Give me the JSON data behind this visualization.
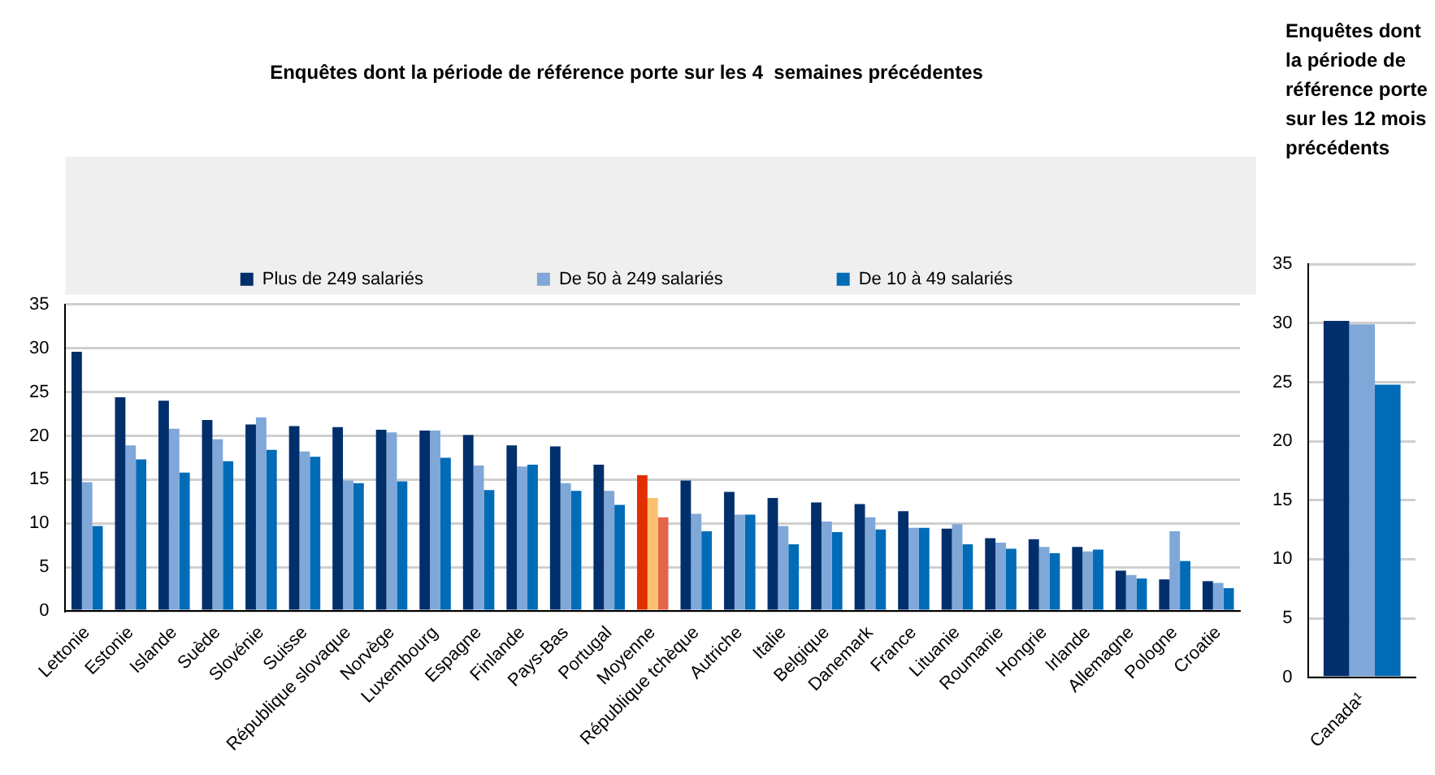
{
  "chart_data": [
    {
      "type": "bar",
      "title": "Enquêtes dont la période de référence porte sur les 4  semaines précédentes",
      "categories": [
        "Lettonie",
        "Estonie",
        "Islande",
        "Suède",
        "Slovénie",
        "Suisse",
        "République slovaque",
        "Norvège",
        "Luxembourg",
        "Espagne",
        "Finlande",
        "Pays-Bas",
        "Portugal",
        "Moyenne",
        "République tchèque",
        "Autriche",
        "Italie",
        "Belgique",
        "Danemark",
        "France",
        "Lituanie",
        "Roumanie",
        "Hongrie",
        "Irlande",
        "Allemagne",
        "Pologne",
        "Croatie"
      ],
      "series": [
        {
          "name": "Plus de 249 salariés",
          "color": "#002f6c",
          "colors": [
            "#002f6c",
            "#002f6c",
            "#002f6c",
            "#002f6c",
            "#002f6c",
            "#002f6c",
            "#002f6c",
            "#002f6c",
            "#002f6c",
            "#002f6c",
            "#002f6c",
            "#002f6c",
            "#002f6c",
            "#e03000",
            "#002f6c",
            "#002f6c",
            "#002f6c",
            "#002f6c",
            "#002f6c",
            "#002f6c",
            "#002f6c",
            "#002f6c",
            "#002f6c",
            "#002f6c",
            "#002f6c",
            "#002f6c",
            "#002f6c"
          ],
          "values": [
            29.6,
            24.4,
            24.0,
            21.8,
            21.3,
            21.1,
            21.0,
            20.7,
            20.6,
            20.1,
            18.9,
            18.8,
            16.7,
            15.5,
            14.9,
            13.6,
            12.9,
            12.4,
            12.2,
            11.4,
            9.4,
            8.3,
            8.2,
            7.3,
            4.6,
            3.6,
            3.4
          ]
        },
        {
          "name": "De 50 à 249 salariés",
          "color": "#7fa7d8",
          "colors": [
            "#7fa7d8",
            "#7fa7d8",
            "#7fa7d8",
            "#7fa7d8",
            "#7fa7d8",
            "#7fa7d8",
            "#7fa7d8",
            "#7fa7d8",
            "#7fa7d8",
            "#7fa7d8",
            "#7fa7d8",
            "#7fa7d8",
            "#7fa7d8",
            "#fbbf6f",
            "#7fa7d8",
            "#7fa7d8",
            "#7fa7d8",
            "#7fa7d8",
            "#7fa7d8",
            "#7fa7d8",
            "#7fa7d8",
            "#7fa7d8",
            "#7fa7d8",
            "#7fa7d8",
            "#7fa7d8",
            "#7fa7d8",
            "#7fa7d8"
          ],
          "values": [
            14.7,
            18.9,
            20.8,
            19.6,
            22.1,
            18.2,
            14.9,
            20.4,
            20.6,
            16.6,
            16.5,
            14.6,
            13.7,
            12.9,
            11.1,
            11.0,
            9.7,
            10.2,
            10.7,
            9.5,
            9.9,
            7.8,
            7.3,
            6.8,
            4.1,
            9.1,
            3.2
          ]
        },
        {
          "name": "De 10 à 49 salariés",
          "color": "#006bb6",
          "colors": [
            "#006bb6",
            "#006bb6",
            "#006bb6",
            "#006bb6",
            "#006bb6",
            "#006bb6",
            "#006bb6",
            "#006bb6",
            "#006bb6",
            "#006bb6",
            "#006bb6",
            "#006bb6",
            "#006bb6",
            "#e2664a",
            "#006bb6",
            "#006bb6",
            "#006bb6",
            "#006bb6",
            "#006bb6",
            "#006bb6",
            "#006bb6",
            "#006bb6",
            "#006bb6",
            "#006bb6",
            "#006bb6",
            "#006bb6",
            "#006bb6"
          ],
          "values": [
            9.7,
            17.3,
            15.8,
            17.1,
            18.4,
            17.6,
            14.6,
            14.8,
            17.5,
            13.8,
            16.7,
            13.7,
            12.1,
            10.7,
            9.1,
            11.0,
            7.6,
            9.0,
            9.3,
            9.5,
            7.6,
            7.1,
            6.6,
            7.0,
            3.7,
            5.7,
            2.6
          ]
        }
      ],
      "ylim": [
        0,
        35
      ],
      "yticks": [
        0,
        5,
        10,
        15,
        20,
        25,
        30,
        35
      ],
      "grid": "y",
      "legend": "top"
    },
    {
      "type": "bar",
      "title": "Enquêtes dont la période de référence porte sur les 12 mois précédents",
      "categories": [
        "Canada¹"
      ],
      "series": [
        {
          "color": "#002f6c",
          "values": [
            30.2
          ]
        },
        {
          "color": "#7fa7d8",
          "values": [
            29.9
          ]
        },
        {
          "color": "#006bb6",
          "values": [
            24.8
          ]
        }
      ],
      "ylim": [
        0,
        35
      ],
      "yticks": [
        0,
        5,
        10,
        15,
        20,
        25,
        30,
        35
      ],
      "grid": "y"
    }
  ]
}
